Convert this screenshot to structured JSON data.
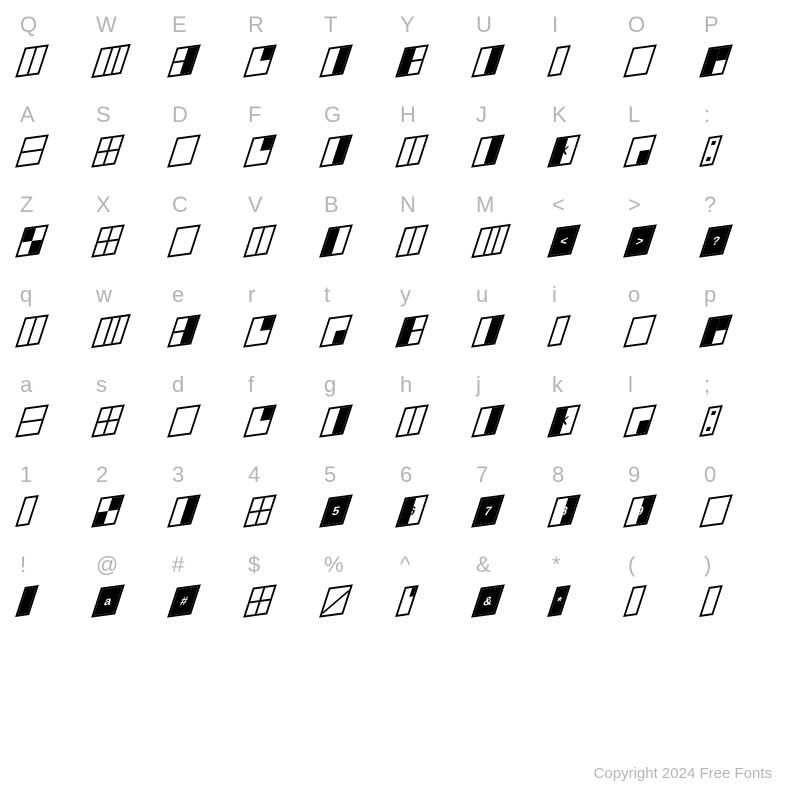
{
  "background_color": "#ffffff",
  "label_color": "#b5b5b5",
  "glyph_color": "#000000",
  "label_fontsize": 22,
  "grid": {
    "cols": 10,
    "rows": 8
  },
  "rows": [
    {
      "labels": [
        "Q",
        "W",
        "E",
        "R",
        "T",
        "Y",
        "U",
        "I",
        "O",
        "P"
      ],
      "glyphs": [
        {
          "w": "",
          "parts": [
            "bar-v"
          ]
        },
        {
          "w": "wide",
          "parts": [
            "bar-v2a",
            "bar-v2b"
          ]
        },
        {
          "w": "",
          "parts": [
            "half-r",
            "bar-h"
          ]
        },
        {
          "w": "",
          "parts": [
            "corner-tr"
          ]
        },
        {
          "w": "",
          "parts": [
            "half-r"
          ]
        },
        {
          "w": "",
          "parts": [
            "half-l",
            "bar-h"
          ]
        },
        {
          "w": "",
          "parts": [
            "half-r"
          ]
        },
        {
          "w": "narrow",
          "parts": []
        },
        {
          "w": "",
          "parts": []
        },
        {
          "w": "",
          "parts": [
            "half-l",
            "corner-tr"
          ]
        }
      ]
    },
    {
      "labels": [
        "A",
        "S",
        "D",
        "F",
        "G",
        "H",
        "J",
        "K",
        "L",
        ":"
      ],
      "glyphs": [
        {
          "w": "",
          "parts": [
            "bar-h"
          ]
        },
        {
          "w": "",
          "parts": [
            "bar-h",
            "bar-v"
          ]
        },
        {
          "w": "",
          "parts": []
        },
        {
          "w": "",
          "parts": [
            "corner-tr"
          ]
        },
        {
          "w": "",
          "parts": [
            "half-r"
          ]
        },
        {
          "w": "",
          "parts": [
            "bar-v"
          ]
        },
        {
          "w": "",
          "parts": [
            "half-r"
          ]
        },
        {
          "w": "",
          "parts": [
            "half-l"
          ],
          "txt_dark": "K"
        },
        {
          "w": "",
          "parts": [
            "corner-br"
          ]
        },
        {
          "w": "narrow",
          "parts": [
            "dot-t",
            "dot-b"
          ]
        }
      ]
    },
    {
      "labels": [
        "Z",
        "X",
        "C",
        "V",
        "B",
        "N",
        "M",
        "<",
        ">",
        "?"
      ],
      "glyphs": [
        {
          "w": "",
          "parts": [
            "corner-tl",
            "corner-br"
          ]
        },
        {
          "w": "",
          "parts": [
            "bar-h",
            "bar-v"
          ]
        },
        {
          "w": "",
          "parts": []
        },
        {
          "w": "",
          "parts": [
            "bar-v"
          ]
        },
        {
          "w": "",
          "parts": [
            "half-l"
          ]
        },
        {
          "w": "",
          "parts": [
            "bar-v"
          ]
        },
        {
          "w": "wide",
          "parts": [
            "bar-v2a",
            "bar-v2b"
          ]
        },
        {
          "w": "",
          "parts": [
            "fill"
          ],
          "txt": "<"
        },
        {
          "w": "",
          "parts": [
            "fill"
          ],
          "txt": ">"
        },
        {
          "w": "",
          "parts": [
            "fill"
          ],
          "txt": "?"
        }
      ]
    },
    {
      "labels": [
        "q",
        "w",
        "e",
        "r",
        "t",
        "y",
        "u",
        "i",
        "o",
        "p"
      ],
      "glyphs": [
        {
          "w": "",
          "parts": [
            "bar-v"
          ]
        },
        {
          "w": "wide",
          "parts": [
            "bar-v2a",
            "bar-v2b"
          ]
        },
        {
          "w": "",
          "parts": [
            "half-r",
            "bar-h"
          ]
        },
        {
          "w": "",
          "parts": [
            "corner-tr"
          ]
        },
        {
          "w": "",
          "parts": [
            "corner-br"
          ]
        },
        {
          "w": "",
          "parts": [
            "half-l",
            "bar-h"
          ]
        },
        {
          "w": "",
          "parts": [
            "half-r"
          ]
        },
        {
          "w": "narrow",
          "parts": []
        },
        {
          "w": "",
          "parts": []
        },
        {
          "w": "",
          "parts": [
            "half-l",
            "corner-tr"
          ]
        }
      ]
    },
    {
      "labels": [
        "a",
        "s",
        "d",
        "f",
        "g",
        "h",
        "j",
        "k",
        "l",
        ";"
      ],
      "glyphs": [
        {
          "w": "",
          "parts": [
            "bar-h"
          ]
        },
        {
          "w": "",
          "parts": [
            "bar-h",
            "bar-v"
          ]
        },
        {
          "w": "",
          "parts": []
        },
        {
          "w": "",
          "parts": [
            "corner-tr"
          ]
        },
        {
          "w": "",
          "parts": [
            "half-r"
          ]
        },
        {
          "w": "",
          "parts": [
            "bar-v"
          ]
        },
        {
          "w": "",
          "parts": [
            "half-r"
          ]
        },
        {
          "w": "",
          "parts": [
            "half-l"
          ],
          "txt_dark": "K"
        },
        {
          "w": "",
          "parts": [
            "corner-br"
          ]
        },
        {
          "w": "narrow",
          "parts": [
            "dot-t",
            "dot-b"
          ]
        }
      ]
    },
    {
      "labels": [
        "1",
        "2",
        "3",
        "4",
        "5",
        "6",
        "7",
        "8",
        "9",
        "0"
      ],
      "glyphs": [
        {
          "w": "narrow",
          "parts": []
        },
        {
          "w": "",
          "parts": [
            "corner-tr",
            "corner-bl"
          ]
        },
        {
          "w": "",
          "parts": [
            "half-r"
          ]
        },
        {
          "w": "",
          "parts": [
            "bar-h",
            "bar-v"
          ]
        },
        {
          "w": "",
          "parts": [
            "fill"
          ],
          "txt": "5"
        },
        {
          "w": "",
          "parts": [
            "half-l"
          ],
          "txt_dark": "6"
        },
        {
          "w": "",
          "parts": [
            "fill"
          ],
          "txt": "7"
        },
        {
          "w": "",
          "parts": [
            "half-r"
          ],
          "txt": "8"
        },
        {
          "w": "",
          "parts": [
            "half-r"
          ],
          "txt": "9"
        },
        {
          "w": "",
          "parts": []
        }
      ]
    },
    {
      "labels": [
        "!",
        "@",
        "#",
        "$",
        "%",
        "^",
        "&",
        "*",
        "(",
        ")"
      ],
      "glyphs": [
        {
          "w": "narrow",
          "parts": [
            "fill"
          ]
        },
        {
          "w": "",
          "parts": [
            "fill"
          ],
          "txt": "a"
        },
        {
          "w": "",
          "parts": [
            "fill"
          ],
          "txt": "#"
        },
        {
          "w": "",
          "parts": [
            "bar-h",
            "bar-v"
          ]
        },
        {
          "w": "",
          "parts": [
            "diag"
          ]
        },
        {
          "w": "narrow",
          "parts": [
            "notch-tr"
          ]
        },
        {
          "w": "",
          "parts": [
            "fill"
          ],
          "txt": "&"
        },
        {
          "w": "narrow",
          "parts": [
            "fill"
          ],
          "txt": "*"
        },
        {
          "w": "narrow",
          "parts": []
        },
        {
          "w": "narrow",
          "parts": []
        }
      ]
    }
  ],
  "copyright": "Copyright 2024 Free Fonts"
}
